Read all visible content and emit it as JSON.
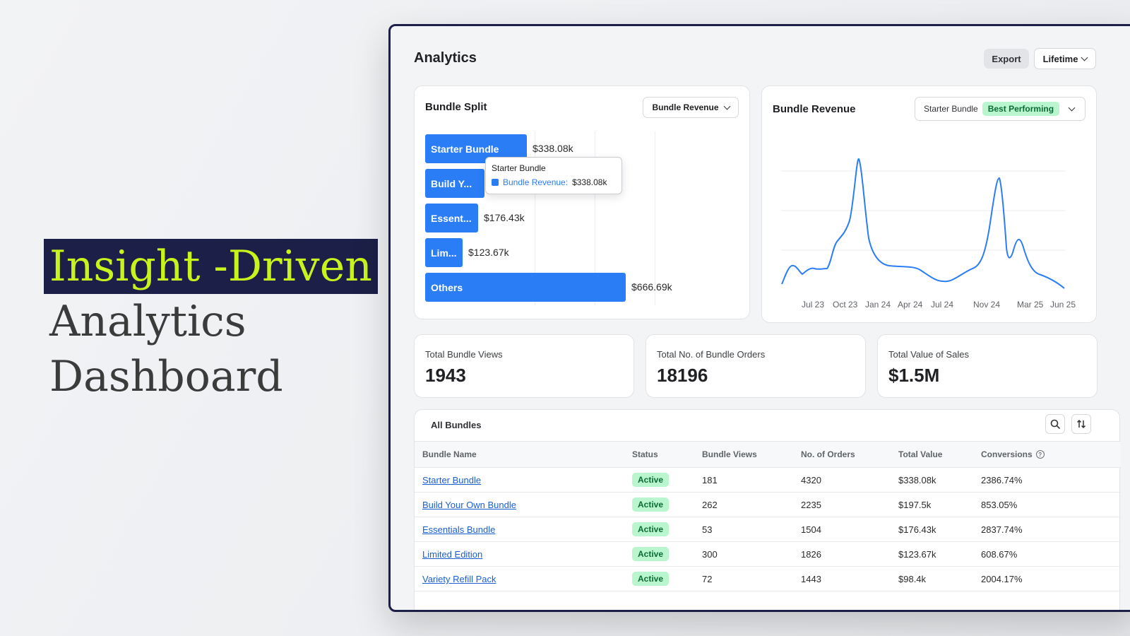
{
  "hero": {
    "line1": "Insight -Driven",
    "line2": "Analytics",
    "line3": "Dashboard"
  },
  "header": {
    "title": "Analytics",
    "export_label": "Export",
    "period_label": "Lifetime"
  },
  "colors": {
    "accent": "#2b7df6",
    "hero_bg": "#1c1f47",
    "hero_highlight": "#c9f31d",
    "badge_bg": "#b9f5cf",
    "badge_text": "#0b6b35"
  },
  "split": {
    "title": "Bundle Split",
    "dropdown": "Bundle Revenue",
    "bars": [
      {
        "label": "Starter Bundle",
        "value_label": "$338.08k",
        "value": 338.08
      },
      {
        "label": "Build Y...",
        "value_label": "",
        "value": 197.5
      },
      {
        "label": "Essent...",
        "value_label": "$176.43k",
        "value": 176.43
      },
      {
        "label": "Lim...",
        "value_label": "$123.67k",
        "value": 123.67
      },
      {
        "label": "Others",
        "value_label": "$666.69k",
        "value": 666.69
      }
    ],
    "tooltip": {
      "title": "Starter Bundle",
      "key": "Bundle Revenue:",
      "value": "$338.08k"
    }
  },
  "revenue": {
    "title": "Bundle Revenue",
    "selected_bundle": "Starter Bundle",
    "badge": "Best Performing",
    "x_ticks": [
      "Jul 23",
      "Oct 23",
      "Jan 24",
      "Apr 24",
      "Jul 24",
      "Nov 24",
      "Mar 25",
      "Jun 25"
    ]
  },
  "metrics": [
    {
      "label": "Total Bundle Views",
      "value": "1943"
    },
    {
      "label": "Total No. of Bundle Orders",
      "value": "18196"
    },
    {
      "label": "Total Value of Sales",
      "value": "$1.5M"
    }
  ],
  "table": {
    "title": "All Bundles",
    "columns": [
      "Bundle Name",
      "Status",
      "Bundle Views",
      "No. of Orders",
      "Total Value",
      "Conversions"
    ],
    "rows": [
      {
        "name": "Starter Bundle",
        "status": "Active",
        "views": "181",
        "orders": "4320",
        "total": "$338.08k",
        "conv": "2386.74%"
      },
      {
        "name": "Build Your Own Bundle",
        "status": "Active",
        "views": "262",
        "orders": "2235",
        "total": "$197.5k",
        "conv": "853.05%"
      },
      {
        "name": "Essentials Bundle",
        "status": "Active",
        "views": "53",
        "orders": "1504",
        "total": "$176.43k",
        "conv": "2837.74%"
      },
      {
        "name": "Limited Edition",
        "status": "Active",
        "views": "300",
        "orders": "1826",
        "total": "$123.67k",
        "conv": "608.67%"
      },
      {
        "name": "Variety Refill Pack",
        "status": "Active",
        "views": "72",
        "orders": "1443",
        "total": "$98.4k",
        "conv": "2004.17%"
      }
    ]
  }
}
